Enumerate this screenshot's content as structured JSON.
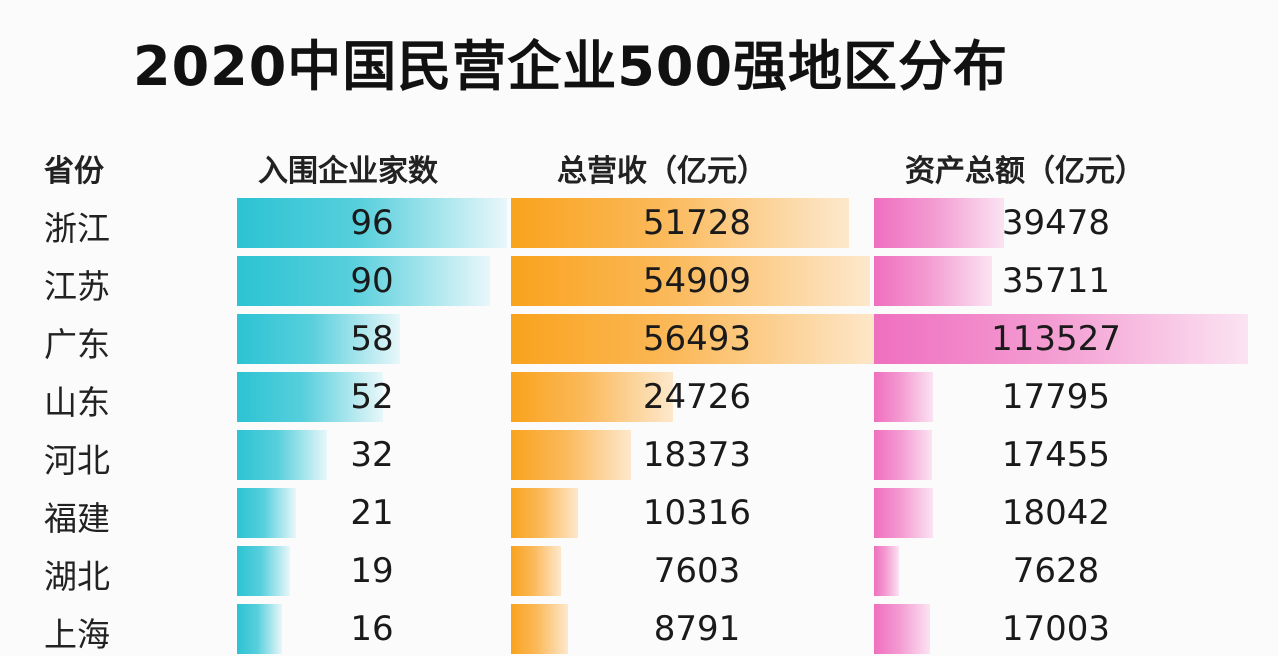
{
  "title": "2020中国民营企业500强地区分布",
  "headers": {
    "province": "省份",
    "count": "入围企业家数",
    "revenue": "总营收（亿元）",
    "assets": "资产总额（亿元）"
  },
  "colors": {
    "count_bar": "#2cc3d3",
    "revenue_bar": "#f9a31d",
    "assets_bar": "#ef6fbf"
  },
  "rows": [
    {
      "province": "浙江",
      "count": "96",
      "revenue": "51728",
      "assets": "39478"
    },
    {
      "province": "江苏",
      "count": "90",
      "revenue": "54909",
      "assets": "35711"
    },
    {
      "province": "广东",
      "count": "58",
      "revenue": "56493",
      "assets": "113527"
    },
    {
      "province": "山东",
      "count": "52",
      "revenue": "24726",
      "assets": "17795"
    },
    {
      "province": "河北",
      "count": "32",
      "revenue": "18373",
      "assets": "17455"
    },
    {
      "province": "福建",
      "count": "21",
      "revenue": "10316",
      "assets": "18042"
    },
    {
      "province": "湖北",
      "count": "19",
      "revenue": "7603",
      "assets": "7628"
    },
    {
      "province": "上海",
      "count": "16",
      "revenue": "8791",
      "assets": "17003"
    }
  ],
  "chart_data": {
    "type": "table",
    "title": "2020中国民营企业500强地区分布",
    "categories": [
      "浙江",
      "江苏",
      "广东",
      "山东",
      "河北",
      "福建",
      "湖北",
      "上海"
    ],
    "series": [
      {
        "name": "入围企业家数",
        "values": [
          96,
          90,
          58,
          52,
          32,
          21,
          19,
          16
        ]
      },
      {
        "name": "总营收（亿元）",
        "values": [
          51728,
          54909,
          56493,
          24726,
          18373,
          10316,
          7603,
          8791
        ]
      },
      {
        "name": "资产总额（亿元）",
        "values": [
          39478,
          35711,
          113527,
          17795,
          17455,
          18042,
          7628,
          17003
        ]
      }
    ],
    "xlabel": "省份",
    "ylabel": "",
    "legend": "none",
    "grid": false
  }
}
